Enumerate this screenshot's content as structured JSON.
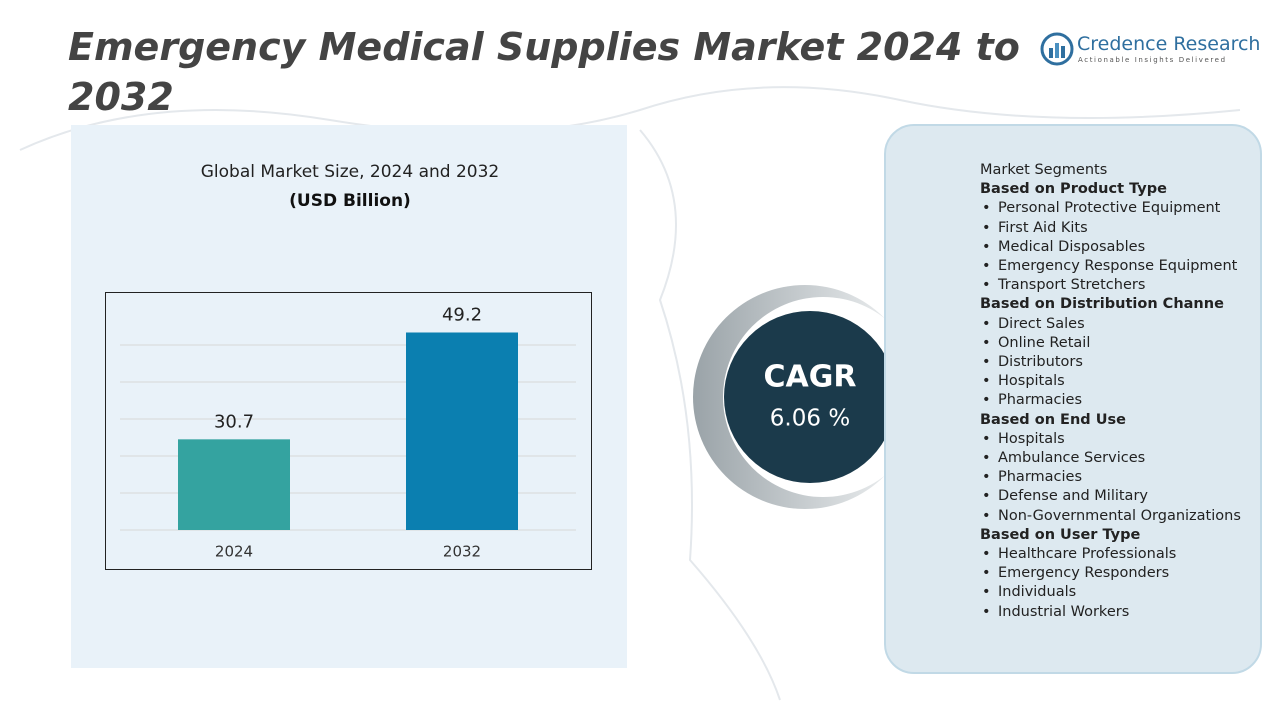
{
  "header": {
    "title": "Emergency Medical Supplies Market 2024 to 2032",
    "brand": "Credence Research",
    "tagline": "Actionable Insights Delivered"
  },
  "chart_data": {
    "type": "bar",
    "title": "Global Market Size, 2024 and 2032",
    "subtitle": "(USD Billion)",
    "categories": [
      "2024",
      "2032"
    ],
    "values": [
      30.7,
      49.2
    ],
    "colors": [
      "#34a3a0",
      "#0b7fb0"
    ],
    "ylim": [
      15,
      55
    ],
    "grid": true
  },
  "cagr": {
    "label": "CAGR",
    "value": "6.06 %"
  },
  "segments": {
    "title": "Market Segments",
    "groups": [
      {
        "heading": "Based on Product Type",
        "items": [
          "Personal Protective Equipment",
          "First Aid Kits",
          "Medical Disposables",
          "Emergency Response Equipment",
          "Transport Stretchers"
        ]
      },
      {
        "heading": "Based on Distribution Channe",
        "items": [
          "Direct Sales",
          "Online Retail",
          "Distributors",
          "Hospitals",
          "Pharmacies"
        ]
      },
      {
        "heading": "Based on End Use",
        "items": [
          "Hospitals",
          "Ambulance Services",
          "Pharmacies",
          "Defense and Military",
          "Non-Governmental Organizations"
        ]
      },
      {
        "heading": "Based on User Type",
        "items": [
          "Healthcare Professionals",
          "Emergency Responders",
          "Individuals",
          "Industrial Workers"
        ]
      }
    ]
  }
}
